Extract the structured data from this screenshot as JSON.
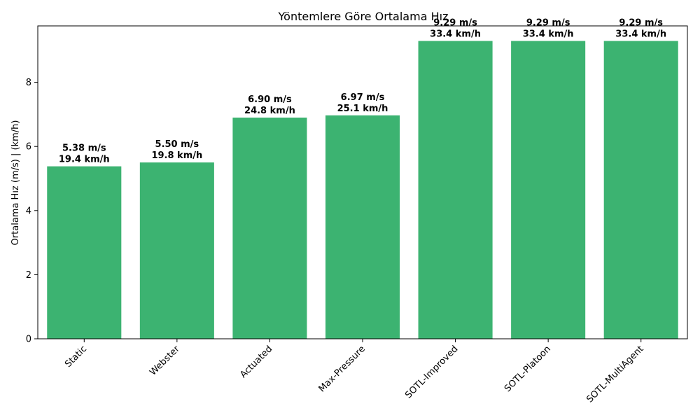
{
  "chart_data": {
    "type": "bar",
    "title": "Yöntemlere Göre Ortalama Hız",
    "xlabel": "",
    "ylabel": "Ortalama Hız (m/s) | (km/h)",
    "categories": [
      "Static",
      "Webster",
      "Actuated",
      "Max-Pressure",
      "SOTL-Improved",
      "SOTL-Platoon",
      "SOTL-MultiAgent"
    ],
    "values": [
      5.38,
      5.5,
      6.9,
      6.97,
      9.29,
      9.29,
      9.29
    ],
    "data_labels": [
      [
        "5.38 m/s",
        "19.4 km/h"
      ],
      [
        "5.50 m/s",
        "19.8 km/h"
      ],
      [
        "6.90 m/s",
        "24.8 km/h"
      ],
      [
        "6.97 m/s",
        "25.1 km/h"
      ],
      [
        "9.29 m/s",
        "33.4 km/h"
      ],
      [
        "9.29 m/s",
        "33.4 km/h"
      ],
      [
        "9.29 m/s",
        "33.4 km/h"
      ]
    ],
    "yticks": [
      0,
      2,
      4,
      6,
      8
    ],
    "ylim": [
      0,
      9.76
    ],
    "bar_color": "#3cb371",
    "grid": false,
    "xtick_rotation_deg": 45
  }
}
